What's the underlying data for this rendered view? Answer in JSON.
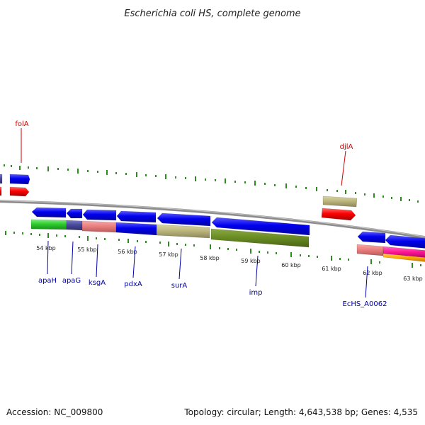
{
  "title": "Escherichia coli HS, complete genome",
  "footer": {
    "accession": "Accession: NC_009800",
    "summary": "Topology: circular; Length: 4,643,538 bp; Genes: 4,535"
  },
  "colors": {
    "backbone": "#8c8c8c",
    "tick": "#2e8b1f",
    "label_red": "#cc0000",
    "label_blue": "#0000aa"
  },
  "kbp_labels": [
    "54 kbp",
    "55 kbp",
    "56 kbp",
    "57 kbp",
    "58 kbp",
    "59 kbp",
    "60 kbp",
    "61 kbp",
    "62 kbp",
    "63 kbp"
  ],
  "gene_labels": [
    "folA",
    "djlA",
    "apaH",
    "apaG",
    "ksgA",
    "pdxA",
    "surA",
    "imp",
    "EcHS_A0062"
  ]
}
